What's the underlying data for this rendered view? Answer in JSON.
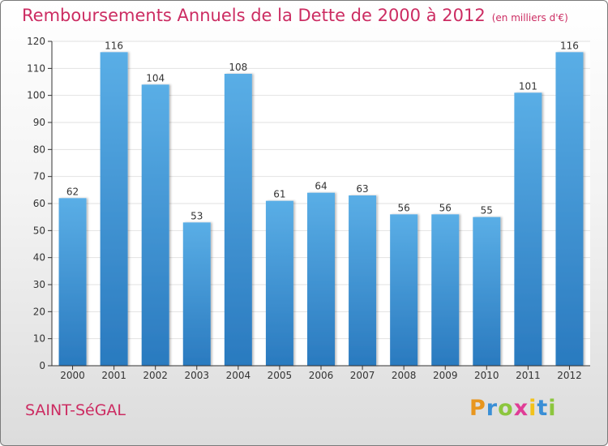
{
  "title": "Remboursements Annuels de la Dette de 2000 à 2012",
  "subtitle": "(en milliers d'€)",
  "commune": "SAINT-SéGAL",
  "brand": {
    "letters": [
      "P",
      "r",
      "o",
      "x",
      "i",
      "t",
      "i"
    ],
    "colors": [
      "#e8961e",
      "#3a8fd6",
      "#8cc63e",
      "#e03c96",
      "#f2c21b",
      "#3a8fd6",
      "#8cc63e"
    ]
  },
  "colors": {
    "title": "#cc2c62",
    "bar_top": "#5aaee6",
    "bar_bottom": "#2a7abf",
    "grid": "#e2e2e2"
  },
  "chart_data": {
    "type": "bar",
    "categories": [
      "2000",
      "2001",
      "2002",
      "2003",
      "2004",
      "2005",
      "2006",
      "2007",
      "2008",
      "2009",
      "2010",
      "2011",
      "2012"
    ],
    "values": [
      62,
      116,
      104,
      53,
      108,
      61,
      64,
      63,
      56,
      56,
      55,
      101,
      116
    ],
    "ylim": [
      0,
      120
    ],
    "yticks": [
      0,
      10,
      20,
      30,
      40,
      50,
      60,
      70,
      80,
      90,
      100,
      110,
      120
    ],
    "grid": true,
    "data_labels": true
  }
}
